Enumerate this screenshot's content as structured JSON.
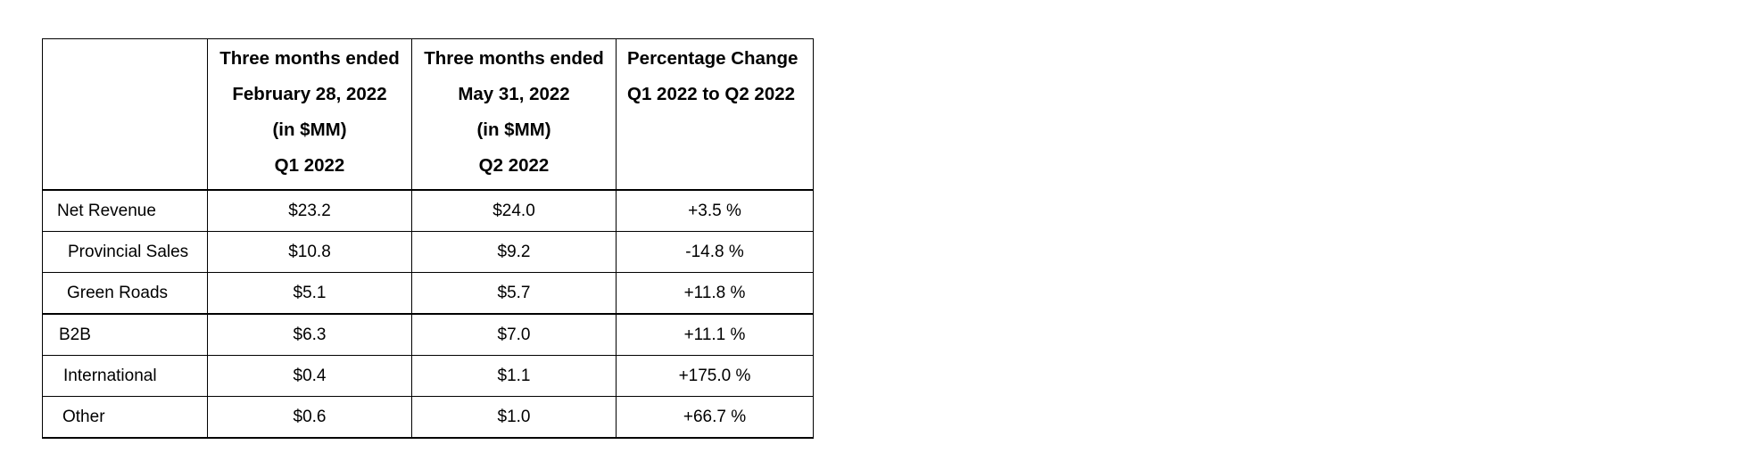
{
  "table": {
    "header": {
      "corner": "",
      "q1": [
        "Three months ended",
        "February 28, 2022",
        "(in $MM)",
        "Q1 2022"
      ],
      "q2": [
        "Three months ended",
        "May 31, 2022",
        "(in $MM)",
        "Q2 2022"
      ],
      "pct": [
        "Percentage Change",
        "Q1 2022 to Q2 2022"
      ]
    },
    "rows": [
      {
        "label": "Net Revenue",
        "q1": "$23.2",
        "q2": "$24.0",
        "pct": "+3.5 %"
      },
      {
        "label": "Provincial Sales",
        "q1": "$10.8",
        "q2": "$9.2",
        "pct": "-14.8 %"
      },
      {
        "label": "Green Roads",
        "q1": "$5.1",
        "q2": "$5.7",
        "pct": "+11.8 %"
      },
      {
        "label": "B2B",
        "q1": "$6.3",
        "q2": "$7.0",
        "pct": "+11.1 %"
      },
      {
        "label": "International",
        "q1": "$0.4",
        "q2": "$1.1",
        "pct": "+175.0 %"
      },
      {
        "label": "Other",
        "q1": "$0.6",
        "q2": "$1.0",
        "pct": "+66.7 %"
      }
    ],
    "colors": {
      "text": "#000000",
      "border": "#000000",
      "background": "#ffffff"
    }
  }
}
